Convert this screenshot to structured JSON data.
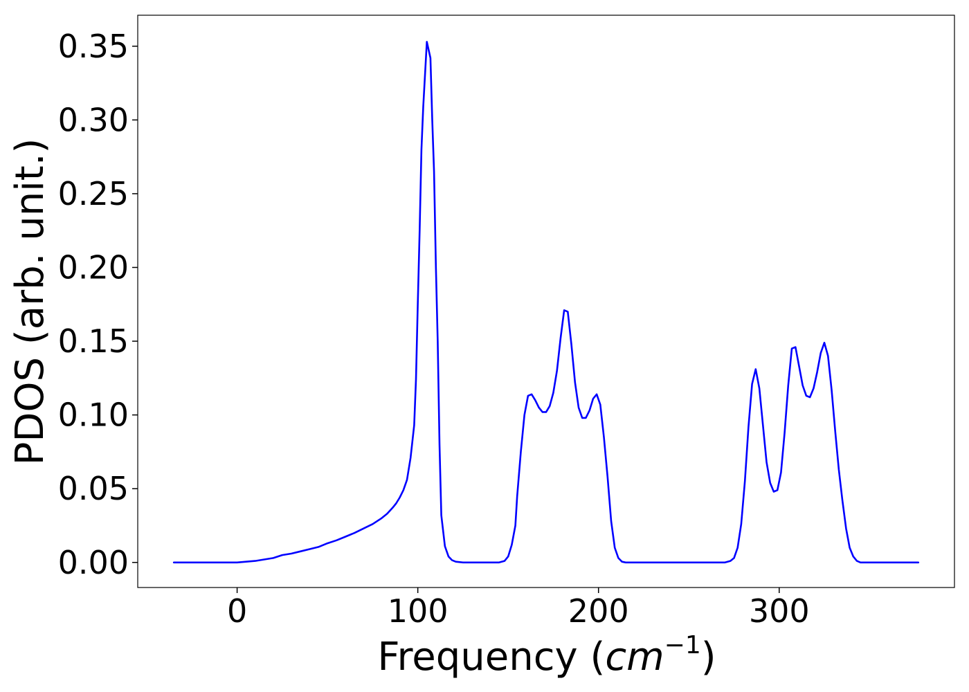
{
  "chart_data": {
    "type": "line",
    "xlabel": "Frequency (cm⁻¹)",
    "xlabel_parts": {
      "prefix": "Frequency (",
      "math": "cm",
      "sup": "−1",
      "suffix": ")"
    },
    "ylabel": "PDOS (arb. unit.)",
    "xlim": [
      -55,
      397
    ],
    "ylim": [
      -0.017,
      0.371
    ],
    "xticks": [
      0,
      100,
      200,
      300
    ],
    "xtick_labels": [
      "0",
      "100",
      "200",
      "300"
    ],
    "yticks": [
      0.0,
      0.05,
      0.1,
      0.15,
      0.2,
      0.25,
      0.3,
      0.35
    ],
    "ytick_labels": [
      "0.00",
      "0.05",
      "0.10",
      "0.15",
      "0.20",
      "0.25",
      "0.30",
      "0.35"
    ],
    "grid": false,
    "legend": "none",
    "series": [
      {
        "color": "#0000ff",
        "points": [
          [
            -35,
            0.0
          ],
          [
            0,
            0.0
          ],
          [
            5,
            0.0005
          ],
          [
            10,
            0.001
          ],
          [
            15,
            0.002
          ],
          [
            20,
            0.003
          ],
          [
            25,
            0.005
          ],
          [
            30,
            0.006
          ],
          [
            35,
            0.0075
          ],
          [
            40,
            0.009
          ],
          [
            45,
            0.0105
          ],
          [
            50,
            0.013
          ],
          [
            55,
            0.015
          ],
          [
            60,
            0.0175
          ],
          [
            65,
            0.02
          ],
          [
            70,
            0.023
          ],
          [
            75,
            0.026
          ],
          [
            80,
            0.03
          ],
          [
            83,
            0.033
          ],
          [
            86,
            0.037
          ],
          [
            88,
            0.04
          ],
          [
            90,
            0.044
          ],
          [
            92,
            0.049
          ],
          [
            94,
            0.056
          ],
          [
            96,
            0.071
          ],
          [
            98,
            0.093
          ],
          [
            99,
            0.124
          ],
          [
            100,
            0.175
          ],
          [
            101,
            0.225
          ],
          [
            102,
            0.28
          ],
          [
            103,
            0.309
          ],
          [
            105,
            0.353
          ],
          [
            107,
            0.342
          ],
          [
            108,
            0.3
          ],
          [
            109,
            0.265
          ],
          [
            110,
            0.2
          ],
          [
            111,
            0.15
          ],
          [
            112,
            0.08
          ],
          [
            113,
            0.032
          ],
          [
            115,
            0.011
          ],
          [
            117,
            0.004
          ],
          [
            119,
            0.0015
          ],
          [
            121,
            0.0005
          ],
          [
            125,
            0.0
          ],
          [
            145,
            0.0
          ],
          [
            148,
            0.001
          ],
          [
            150,
            0.004
          ],
          [
            152,
            0.012
          ],
          [
            154,
            0.025
          ],
          [
            155,
            0.045
          ],
          [
            157,
            0.075
          ],
          [
            159,
            0.1
          ],
          [
            161,
            0.113
          ],
          [
            163,
            0.114
          ],
          [
            165,
            0.11
          ],
          [
            167,
            0.105
          ],
          [
            169,
            0.102
          ],
          [
            171,
            0.102
          ],
          [
            173,
            0.106
          ],
          [
            175,
            0.115
          ],
          [
            177,
            0.13
          ],
          [
            179,
            0.152
          ],
          [
            181,
            0.171
          ],
          [
            183,
            0.17
          ],
          [
            185,
            0.148
          ],
          [
            187,
            0.122
          ],
          [
            189,
            0.105
          ],
          [
            191,
            0.098
          ],
          [
            193,
            0.098
          ],
          [
            195,
            0.103
          ],
          [
            197,
            0.111
          ],
          [
            199,
            0.114
          ],
          [
            201,
            0.107
          ],
          [
            203,
            0.085
          ],
          [
            205,
            0.058
          ],
          [
            207,
            0.028
          ],
          [
            209,
            0.01
          ],
          [
            211,
            0.003
          ],
          [
            213,
            0.0005
          ],
          [
            215,
            0.0
          ],
          [
            270,
            0.0
          ],
          [
            273,
            0.001
          ],
          [
            275,
            0.003
          ],
          [
            277,
            0.01
          ],
          [
            279,
            0.026
          ],
          [
            281,
            0.055
          ],
          [
            283,
            0.092
          ],
          [
            285,
            0.121
          ],
          [
            287,
            0.131
          ],
          [
            289,
            0.118
          ],
          [
            291,
            0.093
          ],
          [
            293,
            0.068
          ],
          [
            295,
            0.054
          ],
          [
            297,
            0.048
          ],
          [
            299,
            0.049
          ],
          [
            301,
            0.061
          ],
          [
            303,
            0.088
          ],
          [
            305,
            0.12
          ],
          [
            307,
            0.145
          ],
          [
            309,
            0.146
          ],
          [
            311,
            0.133
          ],
          [
            313,
            0.12
          ],
          [
            315,
            0.113
          ],
          [
            317,
            0.112
          ],
          [
            319,
            0.118
          ],
          [
            321,
            0.129
          ],
          [
            323,
            0.142
          ],
          [
            325,
            0.149
          ],
          [
            327,
            0.14
          ],
          [
            329,
            0.117
          ],
          [
            331,
            0.089
          ],
          [
            333,
            0.063
          ],
          [
            335,
            0.042
          ],
          [
            337,
            0.023
          ],
          [
            339,
            0.01
          ],
          [
            341,
            0.004
          ],
          [
            343,
            0.001
          ],
          [
            345,
            0.0
          ],
          [
            377,
            0.0
          ]
        ]
      }
    ]
  }
}
